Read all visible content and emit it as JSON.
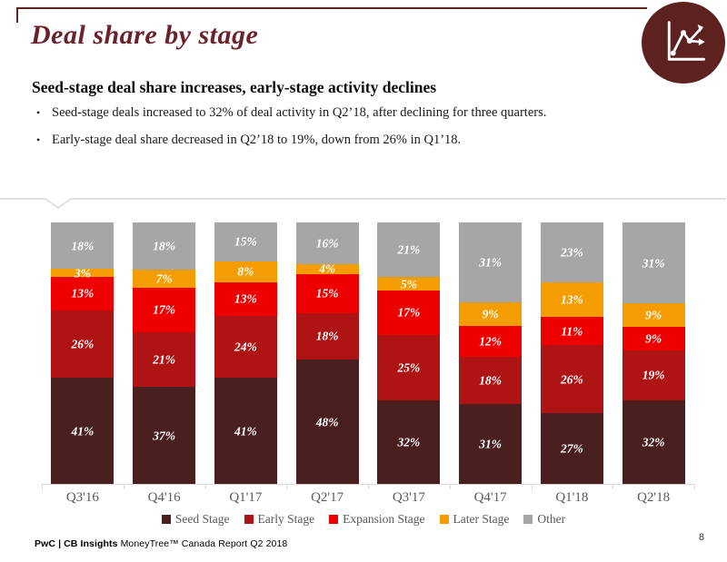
{
  "header": {
    "title": "Deal share by stage",
    "icon": "line-chart-icon",
    "accent_color": "#632422",
    "title_color": "#6b222b"
  },
  "summary": {
    "headline": "Seed-stage deal share increases, early-stage activity declines",
    "bullets": [
      "Seed-stage deals increased to 32% of deal activity in Q2’18, after declining for three quarters.",
      "Early-stage deal share decreased in Q2’18 to 19%, down from 26% in Q1’18."
    ]
  },
  "chart_data": {
    "type": "bar",
    "stacked": true,
    "normalized_to_100": true,
    "categories": [
      "Q3'16",
      "Q4'16",
      "Q1'17",
      "Q2'17",
      "Q3'17",
      "Q4'17",
      "Q1'18",
      "Q2'18"
    ],
    "series": [
      {
        "name": "Seed Stage",
        "color": "#4a1f1f",
        "values": [
          41,
          37,
          41,
          48,
          32,
          31,
          27,
          32
        ]
      },
      {
        "name": "Early Stage",
        "color": "#af1414",
        "values": [
          26,
          21,
          24,
          18,
          25,
          18,
          26,
          19
        ]
      },
      {
        "name": "Expansion Stage",
        "color": "#ee0000",
        "values": [
          13,
          17,
          13,
          15,
          17,
          12,
          11,
          9
        ]
      },
      {
        "name": "Later Stage",
        "color": "#f59c00",
        "values": [
          3,
          7,
          8,
          4,
          5,
          9,
          13,
          9
        ]
      },
      {
        "name": "Other",
        "color": "#a6a6a6",
        "values": [
          18,
          18,
          15,
          16,
          21,
          31,
          23,
          31
        ]
      }
    ],
    "value_suffix": "%",
    "title": "Deal share by stage",
    "xlabel": "",
    "ylabel": "",
    "ylim": [
      0,
      100
    ],
    "grid": false,
    "legend_position": "bottom",
    "axis_color": "#d9d9d9",
    "label_text_color": "#ffffff",
    "tick_label_color": "#595959"
  },
  "footer": {
    "brand_bold": "PwC | CB Insights",
    "brand_rest": " MoneyTree™ Canada Report Q2 2018",
    "page_number": "8"
  }
}
